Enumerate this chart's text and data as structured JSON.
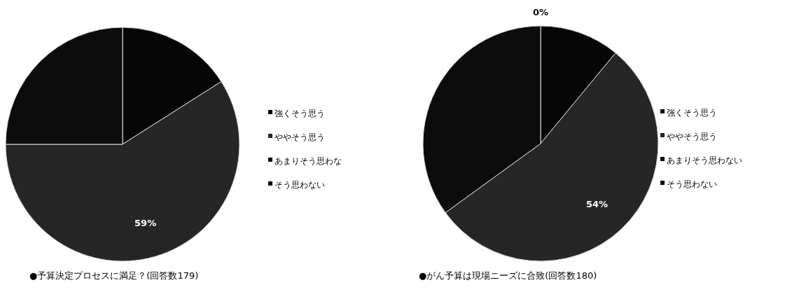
{
  "chart_data": [
    {
      "type": "pie",
      "title": "●予算決定プロセスに満足？(回答数179)",
      "categories": [
        "強くそう思う",
        "ややそう思う",
        "あまりそう思わな",
        "そう思わない"
      ],
      "values": [
        16,
        59,
        25,
        0
      ],
      "colors": [
        "#060606",
        "#262626",
        "#0c0c0c",
        "#000000"
      ],
      "value_labels": [
        null,
        "59%",
        null,
        null
      ],
      "legend": "right"
    },
    {
      "type": "pie",
      "title": "●がん予算は現場ニーズに合致(回答数180)",
      "categories": [
        "強くそう思う",
        "ややそう思う",
        "あまりそう思わない",
        "そう思わない"
      ],
      "values": [
        11,
        54,
        35,
        0
      ],
      "colors": [
        "#060606",
        "#262626",
        "#0c0c0c",
        "#000000"
      ],
      "value_labels": [
        null,
        "54%",
        null,
        "0%"
      ],
      "legend": "right"
    }
  ]
}
